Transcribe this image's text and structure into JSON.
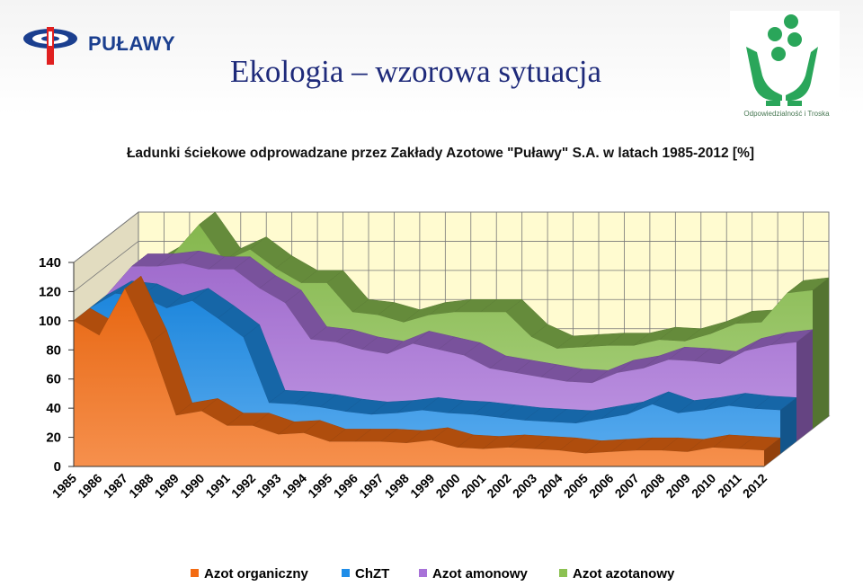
{
  "header": {
    "brand": "PUŁAWY",
    "title": "Ekologia – wzorowa sytuacja",
    "rc_caption": "Odpowiedzialność i Troska"
  },
  "colors": {
    "organic": "#f36b12",
    "chzt": "#1f8de8",
    "amonowy": "#a872d8",
    "azotanowy": "#8cc152",
    "wall": "#fffbd0",
    "brand": "#1b3f8f",
    "title": "#1e2a7a",
    "rc_green": "#2aa65a"
  },
  "chart_data": {
    "type": "area",
    "stacked": false,
    "three_d": true,
    "title": "Ładunki ściekowe odprowadzane przez Zakłady Azotowe \"Puławy\" S.A. w latach 1985-2012 [%]",
    "xlabel": "",
    "ylabel": "",
    "ylim": [
      0,
      140
    ],
    "yticks": [
      0,
      20,
      40,
      60,
      80,
      100,
      120,
      140
    ],
    "grid": true,
    "legend_position": "bottom",
    "categories": [
      "1985",
      "1986",
      "1987",
      "1988",
      "1989",
      "1990",
      "1991",
      "1992",
      "1993",
      "1994",
      "1995",
      "1996",
      "1997",
      "1998",
      "1999",
      "2000",
      "2001",
      "2002",
      "2003",
      "2004",
      "2005",
      "2006",
      "2007",
      "2008",
      "2009",
      "2010",
      "2011",
      "2012"
    ],
    "series": [
      {
        "name": "Azot organiczny",
        "color_key": "organic",
        "values": [
          100,
          90,
          122,
          85,
          35,
          38,
          28,
          28,
          22,
          23,
          17,
          17,
          17,
          16,
          18,
          13,
          12,
          13,
          12,
          11,
          9,
          10,
          11,
          11,
          10,
          13,
          12,
          11
        ]
      },
      {
        "name": "ChZT",
        "color_key": "chzt",
        "values": [
          100,
          110,
          108,
          100,
          105,
          93,
          80,
          35,
          34,
          32,
          29,
          27,
          28,
          30,
          28,
          27,
          25,
          23,
          22,
          21,
          24,
          27,
          34,
          28,
          30,
          33,
          31,
          30
        ]
      },
      {
        "name": "Azot amonowy",
        "color_key": "amonowy",
        "values": [
          100,
          120,
          120,
          122,
          118,
          118,
          105,
          95,
          70,
          68,
          63,
          60,
          67,
          63,
          59,
          50,
          47,
          44,
          41,
          40,
          47,
          50,
          56,
          55,
          53,
          62,
          66,
          68
        ]
      },
      {
        "name": "Azot azotanowy",
        "color_key": "azotanowy",
        "values": [
          100,
          110,
          120,
          140,
          115,
          123,
          110,
          100,
          100,
          80,
          78,
          73,
          78,
          80,
          80,
          80,
          63,
          55,
          56,
          57,
          57,
          61,
          60,
          65,
          72,
          73,
          93,
          95
        ]
      }
    ]
  }
}
